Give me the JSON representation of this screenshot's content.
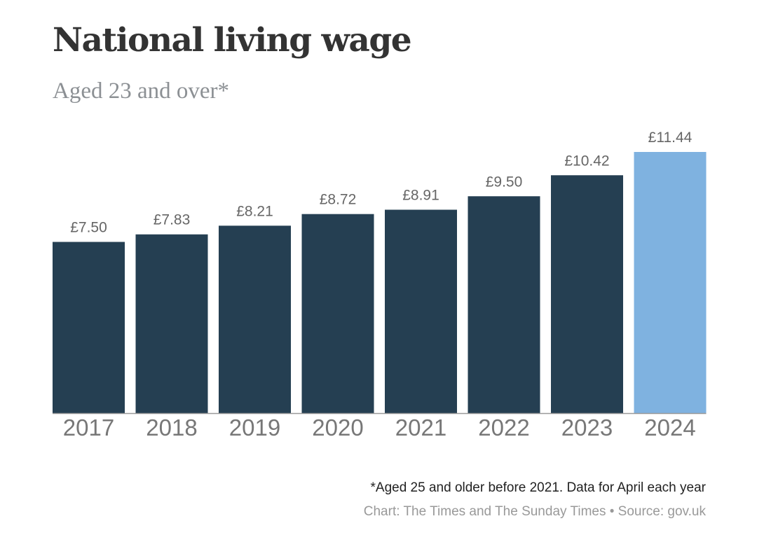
{
  "chart_data": {
    "type": "bar",
    "title": "National living wage",
    "subtitle": "Aged 23 and over*",
    "categories": [
      "2017",
      "2018",
      "2019",
      "2020",
      "2021",
      "2022",
      "2023",
      "2024"
    ],
    "values": [
      7.5,
      7.83,
      8.21,
      8.72,
      8.91,
      9.5,
      10.42,
      11.44
    ],
    "data_labels": [
      "£7.50",
      "£7.83",
      "£8.21",
      "£8.72",
      "£8.91",
      "£9.50",
      "£10.42",
      "£11.44"
    ],
    "xlabel": "",
    "ylabel": "",
    "ylim": [
      0,
      11.44
    ],
    "grid": false,
    "colors": {
      "default": "#253f52",
      "highlight": "#7fb2e0",
      "baseline": "#999999"
    },
    "highlight_category": "2024"
  },
  "footer": {
    "note": "*Aged 25 and older before 2021. Data for April each year",
    "credit": "Chart: The Times and The Sunday Times • Source: gov.uk"
  }
}
